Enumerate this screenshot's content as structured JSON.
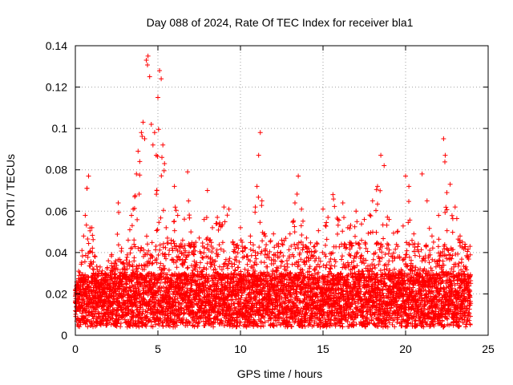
{
  "chart_data": {
    "type": "scatter",
    "title": "Day 088 of 2024, Rate Of TEC Index for receiver bla1",
    "xlabel": "GPS time / hours",
    "ylabel": "ROTI / TECUs",
    "xlim": [
      0,
      25
    ],
    "ylim": [
      0,
      0.14
    ],
    "xticks": [
      "0",
      "5",
      "10",
      "15",
      "20",
      "25"
    ],
    "yticks": [
      "0",
      "0.02",
      "0.04",
      "0.06",
      "0.08",
      "0.1",
      "0.12",
      "0.14"
    ],
    "grid": true,
    "marker": "+",
    "color": "#ff0000",
    "series": [
      {
        "name": "ROTI",
        "x": [
          0.0,
          0.2,
          0.4,
          0.5,
          0.6,
          0.7,
          0.8,
          1.0,
          1.2,
          1.5,
          1.8,
          2.0,
          2.2,
          2.4,
          2.6,
          2.8,
          3.0,
          3.2,
          3.3,
          3.4,
          3.5,
          3.6,
          3.7,
          3.8,
          3.9,
          4.0,
          4.1,
          4.2,
          4.3,
          4.4,
          4.5,
          4.6,
          4.7,
          4.8,
          4.9,
          5.0,
          5.1,
          5.2,
          5.3,
          5.4,
          5.5,
          5.8,
          6.0,
          6.2,
          6.5,
          6.8,
          7.0,
          7.2,
          7.5,
          7.8,
          8.0,
          8.3,
          8.6,
          9.0,
          9.3,
          9.6,
          10.0,
          10.3,
          10.6,
          10.9,
          11.0,
          11.1,
          11.2,
          11.3,
          11.5,
          12.0,
          12.5,
          13.0,
          13.3,
          13.5,
          13.7,
          14.0,
          14.5,
          15.0,
          15.3,
          15.6,
          15.9,
          16.2,
          16.5,
          17.0,
          17.5,
          18.0,
          18.3,
          18.5,
          18.7,
          19.0,
          19.5,
          20.0,
          20.2,
          20.5,
          21.0,
          21.3,
          21.6,
          22.0,
          22.3,
          22.4,
          22.5,
          22.7,
          23.0,
          23.3,
          23.6,
          23.9
        ],
        "values": [
          0.022,
          0.031,
          0.041,
          0.048,
          0.058,
          0.071,
          0.077,
          0.052,
          0.038,
          0.033,
          0.03,
          0.036,
          0.039,
          0.035,
          0.064,
          0.042,
          0.033,
          0.046,
          0.051,
          0.058,
          0.061,
          0.067,
          0.078,
          0.089,
          0.084,
          0.098,
          0.103,
          0.095,
          0.133,
          0.135,
          0.125,
          0.102,
          0.092,
          0.098,
          0.087,
          0.115,
          0.128,
          0.124,
          0.092,
          0.083,
          0.052,
          0.046,
          0.072,
          0.058,
          0.046,
          0.079,
          0.05,
          0.044,
          0.047,
          0.056,
          0.07,
          0.052,
          0.057,
          0.062,
          0.061,
          0.044,
          0.052,
          0.042,
          0.048,
          0.062,
          0.072,
          0.087,
          0.098,
          0.065,
          0.048,
          0.049,
          0.046,
          0.049,
          0.064,
          0.077,
          0.061,
          0.047,
          0.043,
          0.061,
          0.057,
          0.068,
          0.056,
          0.064,
          0.052,
          0.06,
          0.056,
          0.065,
          0.072,
          0.087,
          0.082,
          0.056,
          0.05,
          0.077,
          0.072,
          0.049,
          0.078,
          0.065,
          0.048,
          0.058,
          0.095,
          0.087,
          0.069,
          0.073,
          0.062,
          0.048,
          0.044,
          0.043
        ]
      }
    ]
  }
}
